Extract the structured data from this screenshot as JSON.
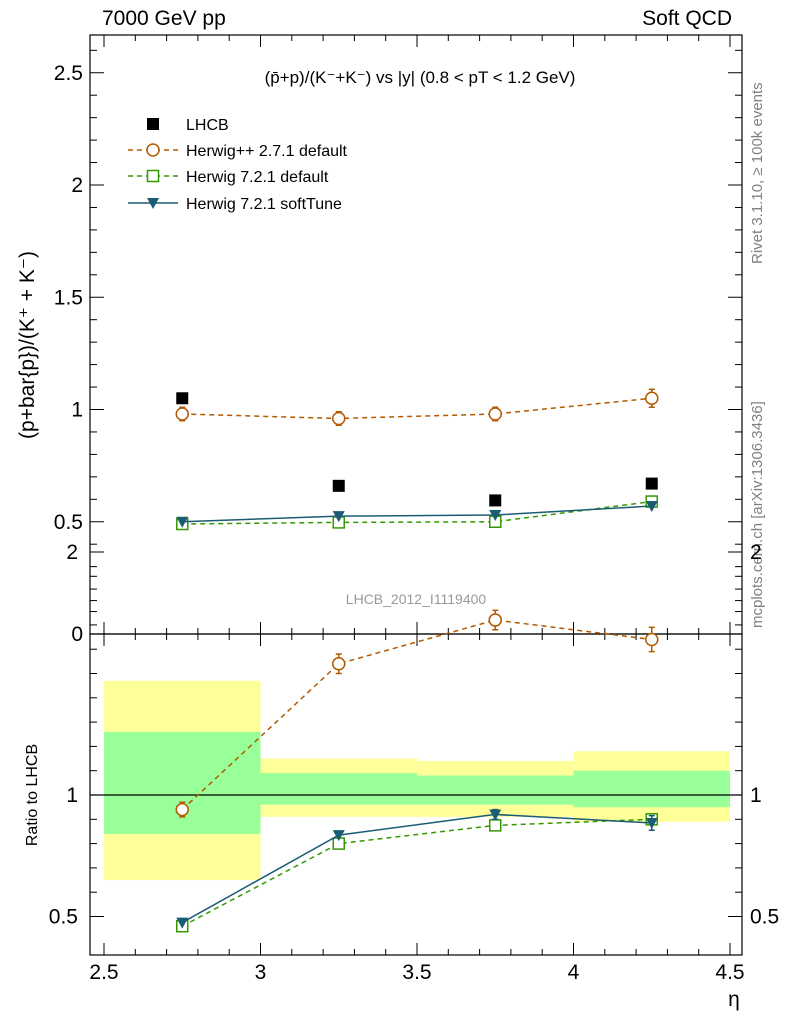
{
  "header": {
    "left": "7000 GeV pp",
    "right": "Soft QCD"
  },
  "side_text": {
    "rivet": "Rivet 3.1.10, ≥ 100k events",
    "mcplots": "mcplots.cern.ch [arXiv:1306.3436]"
  },
  "analysis_id": "LHCB_2012_I1119400",
  "colors": {
    "lhcb": "#000000",
    "herwigpp": "#b35900",
    "herwig721": "#339900",
    "softtune": "#1a5c73",
    "band_outer": "#ffff99",
    "band_inner": "#99ff99"
  },
  "chart_data": [
    {
      "type": "scatter",
      "title": "(p̄+p)/(K⁻+K⁻) vs |y| (0.8 < pT < 1.2 GeV)",
      "ylabel": "(p+bar{p})/(K⁺ + K⁻)",
      "xlim": [
        2.5,
        4.5
      ],
      "ylim": [
        0,
        2.7
      ],
      "yticks": [
        "0.5",
        "1",
        "1.5",
        "2",
        "2.5"
      ],
      "legend_position": "top-left",
      "series": [
        {
          "name": "LHCB",
          "x": [
            2.75,
            3.25,
            3.75,
            4.25
          ],
          "y": [
            1.05,
            0.66,
            0.595,
            0.67
          ]
        },
        {
          "name": "Herwig++ 2.7.1 default",
          "x": [
            2.75,
            3.25,
            3.75,
            4.25
          ],
          "y": [
            0.98,
            0.96,
            0.98,
            1.05
          ],
          "err": [
            0.03,
            0.03,
            0.03,
            0.04
          ]
        },
        {
          "name": "Herwig 7.2.1 default",
          "x": [
            2.75,
            3.25,
            3.75,
            4.25
          ],
          "y": [
            0.49,
            0.497,
            0.5,
            0.59
          ]
        },
        {
          "name": "Herwig 7.2.1 softTune",
          "x": [
            2.75,
            3.25,
            3.75,
            4.25
          ],
          "y": [
            0.5,
            0.525,
            0.53,
            0.57
          ]
        }
      ]
    },
    {
      "type": "line",
      "xlabel": "η",
      "ylabel": "Ratio to LHCB",
      "xlim": [
        2.5,
        4.5
      ],
      "ylim": [
        0.4,
        2.3
      ],
      "xticks": [
        "2.5",
        "3",
        "3.5",
        "4",
        "4.5"
      ],
      "yticks": [
        "0.5",
        "1",
        "2"
      ],
      "bands": [
        {
          "x0": 2.5,
          "x1": 3.0,
          "outer": [
            0.65,
            1.47
          ],
          "inner": [
            0.84,
            1.26
          ]
        },
        {
          "x0": 3.0,
          "x1": 3.5,
          "outer": [
            0.91,
            1.15
          ],
          "inner": [
            0.96,
            1.09
          ]
        },
        {
          "x0": 3.5,
          "x1": 4.0,
          "outer": [
            0.91,
            1.14
          ],
          "inner": [
            0.96,
            1.08
          ]
        },
        {
          "x0": 4.0,
          "x1": 4.5,
          "outer": [
            0.89,
            1.18
          ],
          "inner": [
            0.95,
            1.1
          ]
        }
      ],
      "series": [
        {
          "name": "Herwig++ 2.7.1 default",
          "x": [
            2.75,
            3.25,
            3.75,
            4.25
          ],
          "y": [
            0.94,
            1.54,
            1.72,
            1.64
          ],
          "err": [
            0.03,
            0.04,
            0.04,
            0.05
          ]
        },
        {
          "name": "Herwig 7.2.1 default",
          "x": [
            2.75,
            3.25,
            3.75,
            4.25
          ],
          "y": [
            0.46,
            0.8,
            0.875,
            0.9
          ]
        },
        {
          "name": "Herwig 7.2.1 softTune",
          "x": [
            2.75,
            3.25,
            3.75,
            4.25
          ],
          "y": [
            0.475,
            0.835,
            0.92,
            0.885
          ],
          "err": [
            0.0,
            0.0,
            0.02,
            0.03
          ]
        }
      ]
    }
  ]
}
